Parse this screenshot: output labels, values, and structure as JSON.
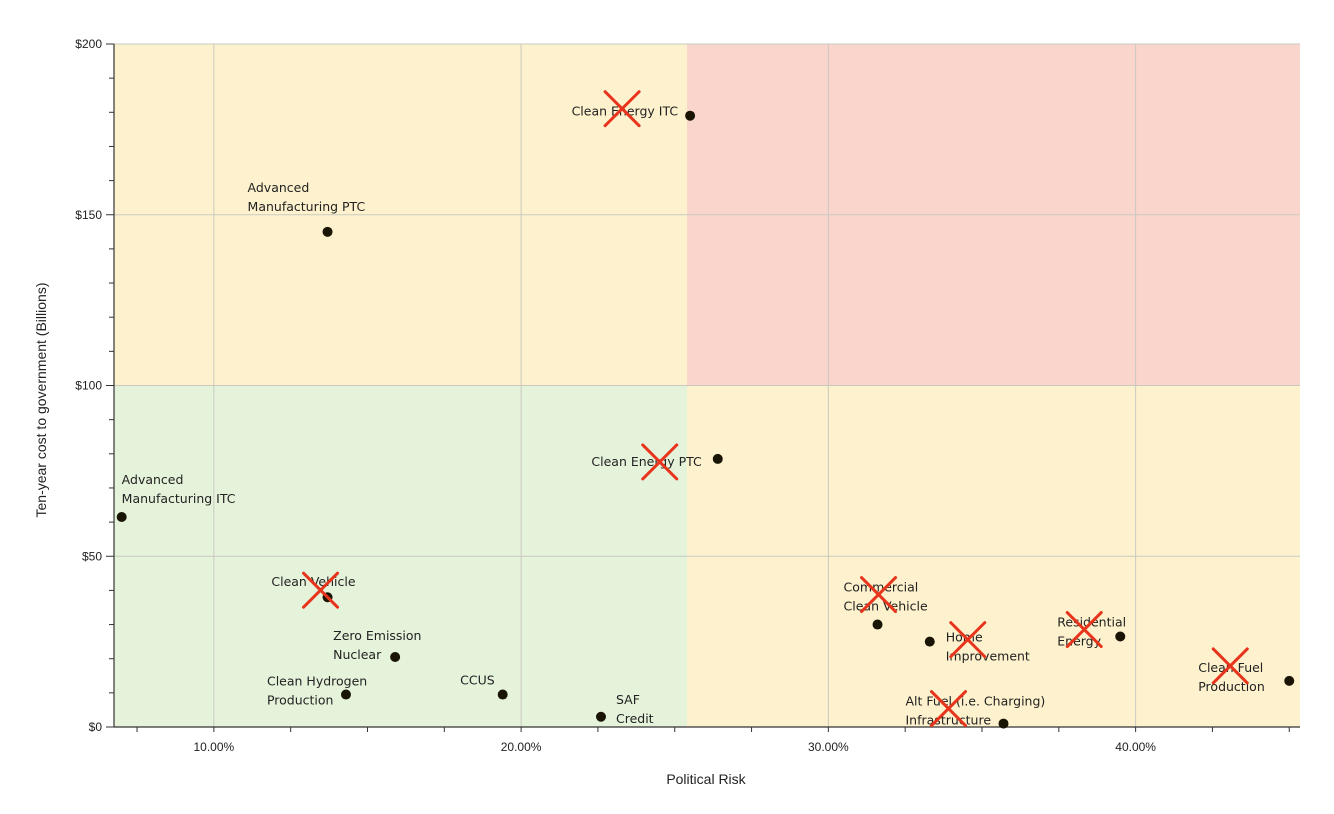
{
  "chart_data": {
    "type": "scatter",
    "title": "",
    "xlabel": "Political Risk",
    "ylabel": "Ten-year cost to government (Billions)",
    "xlim": [
      0.0675,
      0.4535
    ],
    "ylim": [
      0,
      200
    ],
    "x_ticks": [
      {
        "value": 0.1,
        "label": "10.00%"
      },
      {
        "value": 0.2,
        "label": "20.00%"
      },
      {
        "value": 0.3,
        "label": "30.00%"
      },
      {
        "value": 0.4,
        "label": "40.00%"
      }
    ],
    "y_ticks": [
      {
        "value": 0,
        "label": "$0"
      },
      {
        "value": 50,
        "label": "$50"
      },
      {
        "value": 100,
        "label": "$100"
      },
      {
        "value": 150,
        "label": "$150"
      },
      {
        "value": 200,
        "label": "$200"
      }
    ],
    "quadrants": {
      "x_split": 0.254,
      "y_split": 100,
      "colors": {
        "low_low": "#e6f3db",
        "low_high": "#fdf2cd",
        "high_low": "#fdf2cd",
        "high_high": "#fad5cc"
      }
    },
    "marker_color": "#1a1405",
    "cross_color": "#e8341c",
    "points": [
      {
        "name": "Clean Energy ITC",
        "lines": [
          "Clean Energy ITC"
        ],
        "x": 0.255,
        "y": 179,
        "crossed": true
      },
      {
        "name": "Advanced Manufacturing PTC",
        "lines": [
          "Advanced",
          "Manufacturing PTC"
        ],
        "x": 0.137,
        "y": 145,
        "crossed": false
      },
      {
        "name": "Clean Energy PTC",
        "lines": [
          "Clean Energy PTC"
        ],
        "x": 0.264,
        "y": 78.5,
        "crossed": true
      },
      {
        "name": "Advanced Manufacturing ITC",
        "lines": [
          "Advanced",
          "Manufacturing ITC"
        ],
        "x": 0.07,
        "y": 61.5,
        "crossed": false
      },
      {
        "name": "Clean Vehicle",
        "lines": [
          "Clean Vehicle"
        ],
        "x": 0.137,
        "y": 38,
        "crossed": true
      },
      {
        "name": "Zero Emission Nuclear",
        "lines": [
          "Zero Emission",
          "Nuclear"
        ],
        "x": 0.159,
        "y": 20.5,
        "crossed": false
      },
      {
        "name": "Clean Hydrogen Production",
        "lines": [
          "Clean Hydrogen",
          "Production"
        ],
        "x": 0.143,
        "y": 9.5,
        "crossed": false
      },
      {
        "name": "CCUS",
        "lines": [
          "CCUS"
        ],
        "x": 0.194,
        "y": 9.5,
        "crossed": false
      },
      {
        "name": "SAF Credit",
        "lines": [
          "SAF",
          "Credit"
        ],
        "x": 0.226,
        "y": 3,
        "crossed": false
      },
      {
        "name": "Commercial Clean Vehicle",
        "lines": [
          "Commercial",
          "Clean Vehicle"
        ],
        "x": 0.316,
        "y": 30,
        "crossed": true
      },
      {
        "name": "Home Improvement",
        "lines": [
          "Home",
          "Improvement"
        ],
        "x": 0.333,
        "y": 25,
        "crossed": true
      },
      {
        "name": "Residential Energy",
        "lines": [
          "Residential",
          "Energy"
        ],
        "x": 0.395,
        "y": 26.5,
        "crossed": true
      },
      {
        "name": "Clean Fuel Production",
        "lines": [
          "Clean Fuel",
          "Production"
        ],
        "x": 0.45,
        "y": 13.5,
        "crossed": true
      },
      {
        "name": "Alt Fuel (i.e. Charging) Infrastructure",
        "lines": [
          "Alt Fuel (i.e. Charging)",
          "Infrastructure"
        ],
        "x": 0.357,
        "y": 1,
        "crossed": true
      }
    ]
  }
}
